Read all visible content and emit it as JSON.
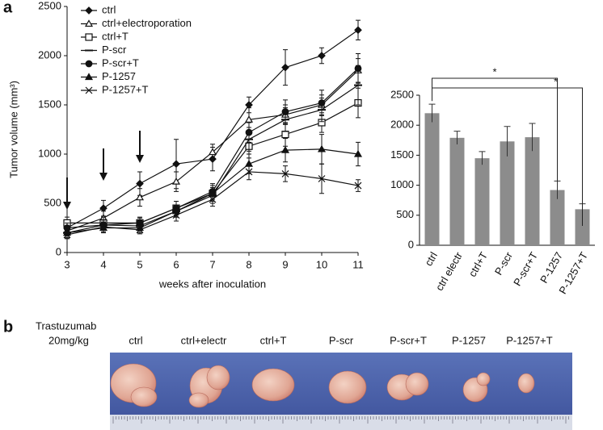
{
  "panel_labels": [
    "a",
    "b"
  ],
  "chart_data": [
    {
      "type": "line",
      "xlabel": "weeks after inoculation",
      "ylabel": "Tumor volume (mm³)",
      "x": [
        3,
        4,
        5,
        6,
        7,
        8,
        9,
        10,
        11
      ],
      "xlim": [
        3,
        11
      ],
      "xticks": [
        3,
        4,
        5,
        6,
        7,
        8,
        9,
        10,
        11
      ],
      "ylim": [
        0,
        2500
      ],
      "yticks": [
        0,
        500,
        1000,
        1500,
        2000,
        2500
      ],
      "legend": "top-left",
      "series": [
        {
          "name": "ctrl",
          "color": "#111111",
          "marker": "diamond",
          "values": [
            250,
            450,
            700,
            900,
            950,
            1500,
            1880,
            2000,
            2260
          ],
          "errors": [
            60,
            80,
            120,
            250,
            120,
            80,
            180,
            80,
            100
          ]
        },
        {
          "name": "ctrl+electroporation",
          "color": "#111111",
          "marker": "triangle-open",
          "values": [
            220,
            350,
            560,
            720,
            1020,
            1350,
            1400,
            1500,
            1850
          ],
          "errors": [
            50,
            70,
            90,
            100,
            80,
            120,
            100,
            100,
            120
          ]
        },
        {
          "name": "ctrl+T",
          "color": "#111111",
          "marker": "square-open",
          "values": [
            300,
            300,
            300,
            450,
            600,
            1080,
            1200,
            1320,
            1520
          ],
          "errors": [
            60,
            60,
            60,
            70,
            80,
            120,
            120,
            100,
            150
          ]
        },
        {
          "name": "P-scr",
          "color": "#111111",
          "marker": "dash",
          "values": [
            200,
            280,
            270,
            420,
            580,
            1150,
            1350,
            1450,
            1700
          ],
          "errors": [
            50,
            50,
            50,
            60,
            80,
            120,
            120,
            120,
            200
          ]
        },
        {
          "name": "P-scr+T",
          "color": "#111111",
          "marker": "circle",
          "values": [
            250,
            280,
            300,
            450,
            620,
            1220,
            1430,
            1520,
            1870
          ],
          "errors": [
            50,
            50,
            50,
            70,
            80,
            100,
            120,
            130,
            150
          ]
        },
        {
          "name": "P-1257",
          "color": "#111111",
          "marker": "triangle",
          "values": [
            200,
            250,
            250,
            420,
            600,
            900,
            1040,
            1050,
            1000
          ],
          "errors": [
            50,
            50,
            50,
            60,
            80,
            100,
            120,
            150,
            120
          ]
        },
        {
          "name": "P-1257+T",
          "color": "#111111",
          "marker": "x",
          "values": [
            180,
            260,
            230,
            380,
            540,
            820,
            800,
            750,
            680
          ],
          "errors": [
            40,
            50,
            40,
            60,
            70,
            80,
            80,
            150,
            60
          ]
        }
      ]
    },
    {
      "type": "bar",
      "categories": [
        "ctrl",
        "ctrl electr",
        "ctrl+T",
        "P-scr",
        "P-scr+T",
        "P-1257",
        "P-1257+T"
      ],
      "values": [
        2200,
        1790,
        1450,
        1730,
        1800,
        920,
        600
      ],
      "errors": [
        150,
        110,
        110,
        250,
        230,
        150,
        90
      ],
      "color": "#8c8c8c",
      "ylim": [
        0,
        2500
      ],
      "yticks": [
        0,
        500,
        1000,
        1500,
        2000,
        2500
      ],
      "annotations": [
        "*",
        "*"
      ]
    }
  ],
  "photo": {
    "treatment": "Trastuzumab",
    "dose": "20mg/kg",
    "labels": [
      "ctrl",
      "ctrl+electr",
      "ctrl+T",
      "P-scr",
      "P-scr+T",
      "P-1257",
      "P-1257+T"
    ]
  }
}
